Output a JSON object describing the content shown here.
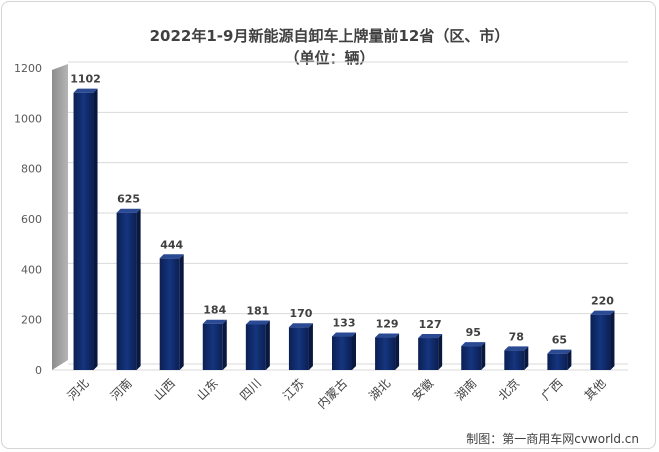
{
  "credit": "制图：第一商用车网cvworld.cn",
  "chart_data": {
    "type": "bar",
    "title_line1": "2022年1-9月新能源自卸车上牌量前12省（区、市）",
    "title_line2": "（单位：辆）",
    "categories": [
      "河北",
      "河南",
      "山西",
      "山东",
      "四川",
      "江苏",
      "内蒙古",
      "湖北",
      "安徽",
      "湖南",
      "北京",
      "广西",
      "其他"
    ],
    "values": [
      1102,
      625,
      444,
      184,
      181,
      170,
      133,
      129,
      127,
      95,
      78,
      65,
      220
    ],
    "yticks": [
      0,
      200,
      400,
      600,
      800,
      1000,
      1200
    ],
    "ylim": [
      0,
      1200
    ],
    "xlabel": "",
    "ylabel": "",
    "bar_color": "#0e2a6b",
    "wall_color": "#a6a6a6"
  }
}
